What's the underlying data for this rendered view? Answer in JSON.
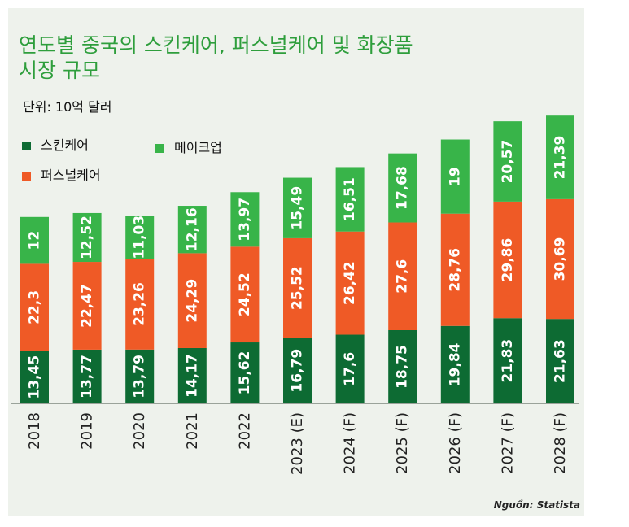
{
  "chart_data": {
    "type": "bar",
    "stacked": true,
    "title": "연도별 중국의 스킨케어, 퍼스널케어 및 화장품 시장 규모",
    "title_lines": [
      "연도별 중국의 스킨케어, 퍼스널케어 및 화장품",
      "시장 규모"
    ],
    "unit_label": "단위: 10억 달러",
    "categories": [
      "2018",
      "2019",
      "2020",
      "2021",
      "2022",
      "2023 (E)",
      "2024 (F)",
      "2025 (F)",
      "2026 (F)",
      "2027 (F)",
      "2028 (F)"
    ],
    "series": [
      {
        "name": "스킨케어",
        "color": "#0d6b33",
        "values": [
          13.45,
          13.77,
          13.79,
          14.17,
          15.62,
          16.79,
          17.6,
          18.75,
          19.84,
          21.83,
          21.63
        ],
        "labels": [
          "13,45",
          "13,77",
          "13,79",
          "14,17",
          "15,62",
          "16,79",
          "17,6",
          "18,75",
          "19,84",
          "21,83",
          "21,63"
        ]
      },
      {
        "name": "퍼스널케어",
        "color": "#ef5a26",
        "values": [
          22.3,
          22.47,
          23.26,
          24.29,
          24.52,
          25.52,
          26.42,
          27.6,
          28.76,
          29.86,
          30.69
        ],
        "labels": [
          "22,3",
          "22,47",
          "23,26",
          "24,29",
          "24,52",
          "25,52",
          "26,42",
          "27,6",
          "28,76",
          "29,86",
          "30,69"
        ]
      },
      {
        "name": "메이크업",
        "color": "#38b449",
        "values": [
          12,
          12.52,
          11.03,
          12.16,
          13.97,
          15.49,
          16.51,
          17.68,
          19,
          20.57,
          21.39
        ],
        "labels": [
          "12",
          "12,52",
          "11,03",
          "12,16",
          "13,97",
          "15,49",
          "16,51",
          "17,68",
          "19",
          "20,57",
          "21,39"
        ]
      }
    ],
    "ylim": [
      0,
      75
    ],
    "grid": false,
    "legend_position": "top-left",
    "source": "Nguồn: Statista"
  }
}
